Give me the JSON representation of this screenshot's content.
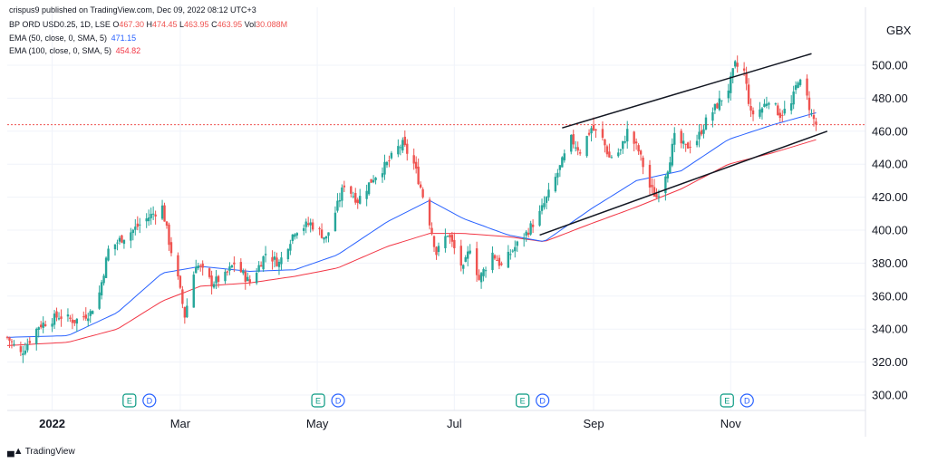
{
  "header": {
    "published": "crispus9 published on TradingView.com, Dec 09, 2022 08:12 UTC+3",
    "symbol": "BP ORD USD0.25, 1D, LSE",
    "ohlc": {
      "o_label": "O",
      "o": "467.30",
      "h_label": "H",
      "h": "474.45",
      "l_label": "L",
      "l": "463.95",
      "c_label": "C",
      "c": "463.95",
      "vol_label": "Vol",
      "vol": "30.088M"
    },
    "ema50": {
      "label": "EMA (50, close, 0, SMA, 5)",
      "value": "471.15"
    },
    "ema100": {
      "label": "EMA (100, close, 0, SMA, 5)",
      "value": "454.82"
    }
  },
  "footer": {
    "logo_text": "TradingView"
  },
  "colors": {
    "up": "#26a69a",
    "down": "#ef5350",
    "ema50": "#2962ff",
    "ema100": "#f23645",
    "channel": "#131722",
    "grid": "#f0f3fa",
    "text": "#131722",
    "last_price_line": "#ef5350"
  },
  "chart_data": {
    "type": "candlestick",
    "currency": "GBX",
    "y_ticks": [
      "300.00",
      "320.00",
      "340.00",
      "360.00",
      "380.00",
      "400.00",
      "420.00",
      "440.00",
      "460.00",
      "480.00",
      "500.00"
    ],
    "ylim": [
      300,
      500
    ],
    "x_labels": [
      "2022",
      "Mar",
      "May",
      "Jul",
      "Sep",
      "Nov"
    ],
    "x_label_dates": [
      "2022-01-03",
      "2022-03-01",
      "2022-05-01",
      "2022-07-01",
      "2022-09-01",
      "2022-11-01"
    ],
    "x_range": [
      "2021-12-14",
      "2022-12-31"
    ],
    "last_price": 463.95,
    "grid": true,
    "earnings_markers": [
      {
        "date": "2022-02-08",
        "labels": [
          "E",
          "D"
        ]
      },
      {
        "date": "2022-05-03",
        "labels": [
          "E",
          "D"
        ]
      },
      {
        "date": "2022-08-02",
        "labels": [
          "E",
          "D"
        ]
      },
      {
        "date": "2022-11-01",
        "labels": [
          "E",
          "D"
        ]
      }
    ],
    "close_waypoints": [
      [
        "2021-12-14",
        335
      ],
      [
        "2021-12-20",
        325
      ],
      [
        "2021-12-28",
        342
      ],
      [
        "2022-01-06",
        348
      ],
      [
        "2022-01-13",
        345
      ],
      [
        "2022-01-20",
        350
      ],
      [
        "2022-01-24",
        362
      ],
      [
        "2022-01-28",
        388
      ],
      [
        "2022-02-02",
        394
      ],
      [
        "2022-02-08",
        400
      ],
      [
        "2022-02-15",
        408
      ],
      [
        "2022-02-21",
        414
      ],
      [
        "2022-02-24",
        393
      ],
      [
        "2022-02-28",
        370
      ],
      [
        "2022-03-03",
        348
      ],
      [
        "2022-03-08",
        380
      ],
      [
        "2022-03-15",
        368
      ],
      [
        "2022-03-21",
        372
      ],
      [
        "2022-03-25",
        380
      ],
      [
        "2022-04-01",
        368
      ],
      [
        "2022-04-08",
        386
      ],
      [
        "2022-04-14",
        380
      ],
      [
        "2022-04-21",
        400
      ],
      [
        "2022-04-28",
        404
      ],
      [
        "2022-05-05",
        395
      ],
      [
        "2022-05-10",
        415
      ],
      [
        "2022-05-13",
        428
      ],
      [
        "2022-05-19",
        418
      ],
      [
        "2022-05-26",
        432
      ],
      [
        "2022-06-01",
        440
      ],
      [
        "2022-06-06",
        450
      ],
      [
        "2022-06-08",
        452
      ],
      [
        "2022-06-13",
        440
      ],
      [
        "2022-06-16",
        426
      ],
      [
        "2022-06-20",
        405
      ],
      [
        "2022-06-23",
        386
      ],
      [
        "2022-06-28",
        398
      ],
      [
        "2022-07-05",
        376
      ],
      [
        "2022-07-08",
        390
      ],
      [
        "2022-07-12",
        370
      ],
      [
        "2022-07-18",
        386
      ],
      [
        "2022-07-22",
        378
      ],
      [
        "2022-07-27",
        388
      ],
      [
        "2022-08-02",
        398
      ],
      [
        "2022-08-08",
        410
      ],
      [
        "2022-08-12",
        422
      ],
      [
        "2022-08-17",
        438
      ],
      [
        "2022-08-22",
        455
      ],
      [
        "2022-08-26",
        448
      ],
      [
        "2022-08-31",
        462
      ],
      [
        "2022-09-05",
        455
      ],
      [
        "2022-09-08",
        444
      ],
      [
        "2022-09-13",
        448
      ],
      [
        "2022-09-16",
        460
      ],
      [
        "2022-09-21",
        448
      ],
      [
        "2022-09-26",
        426
      ],
      [
        "2022-09-29",
        420
      ],
      [
        "2022-10-04",
        438
      ],
      [
        "2022-10-07",
        456
      ],
      [
        "2022-10-12",
        450
      ],
      [
        "2022-10-17",
        455
      ],
      [
        "2022-10-21",
        466
      ],
      [
        "2022-10-26",
        476
      ],
      [
        "2022-10-31",
        486
      ],
      [
        "2022-11-03",
        500
      ],
      [
        "2022-11-07",
        496
      ],
      [
        "2022-11-10",
        470
      ],
      [
        "2022-11-15",
        474
      ],
      [
        "2022-11-18",
        480
      ],
      [
        "2022-11-23",
        470
      ],
      [
        "2022-11-28",
        476
      ],
      [
        "2022-12-01",
        492
      ],
      [
        "2022-12-05",
        480
      ],
      [
        "2022-12-07",
        470
      ],
      [
        "2022-12-09",
        463.95
      ]
    ],
    "ema50_waypoints": [
      [
        "2021-12-14",
        335
      ],
      [
        "2022-01-10",
        336
      ],
      [
        "2022-02-01",
        350
      ],
      [
        "2022-02-21",
        374
      ],
      [
        "2022-03-10",
        378
      ],
      [
        "2022-04-01",
        375
      ],
      [
        "2022-04-21",
        376
      ],
      [
        "2022-05-10",
        385
      ],
      [
        "2022-06-01",
        405
      ],
      [
        "2022-06-20",
        418
      ],
      [
        "2022-07-05",
        407
      ],
      [
        "2022-07-25",
        397
      ],
      [
        "2022-08-10",
        393
      ],
      [
        "2022-08-31",
        413
      ],
      [
        "2022-09-20",
        430
      ],
      [
        "2022-10-10",
        436
      ],
      [
        "2022-10-31",
        455
      ],
      [
        "2022-11-20",
        464
      ],
      [
        "2022-12-09",
        471.15
      ]
    ],
    "ema100_waypoints": [
      [
        "2021-12-14",
        330
      ],
      [
        "2022-01-10",
        332
      ],
      [
        "2022-02-01",
        340
      ],
      [
        "2022-02-21",
        357
      ],
      [
        "2022-03-10",
        366
      ],
      [
        "2022-04-01",
        368
      ],
      [
        "2022-04-21",
        372
      ],
      [
        "2022-05-10",
        377
      ],
      [
        "2022-06-01",
        390
      ],
      [
        "2022-06-20",
        398
      ],
      [
        "2022-07-05",
        398
      ],
      [
        "2022-07-25",
        396
      ],
      [
        "2022-08-10",
        393
      ],
      [
        "2022-08-31",
        404
      ],
      [
        "2022-09-20",
        414
      ],
      [
        "2022-10-10",
        425
      ],
      [
        "2022-10-31",
        440
      ],
      [
        "2022-11-20",
        447
      ],
      [
        "2022-12-09",
        454.82
      ]
    ],
    "channel_upper": [
      [
        "2022-08-18",
        462
      ],
      [
        "2022-12-07",
        507
      ]
    ],
    "channel_lower": [
      [
        "2022-08-08",
        397
      ],
      [
        "2022-12-14",
        460
      ]
    ]
  }
}
